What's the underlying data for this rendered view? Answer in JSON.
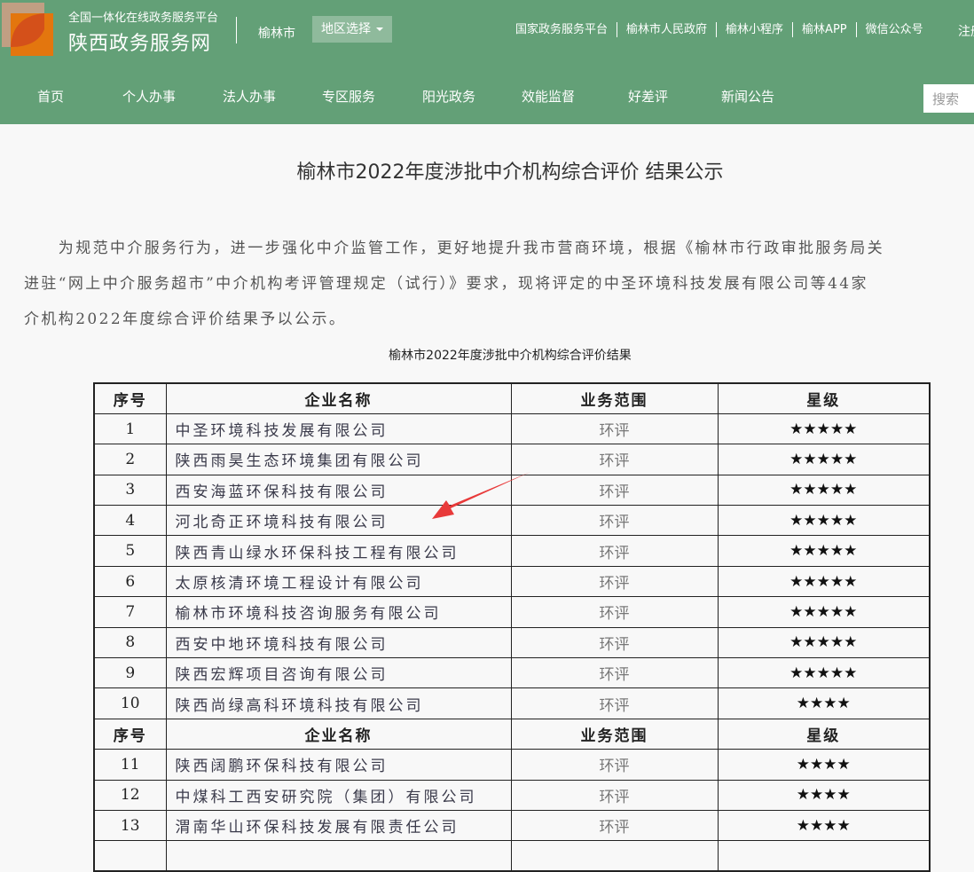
{
  "header": {
    "platform": "全国一体化在线政务服务平台",
    "site_name": "陕西政务服务网",
    "city": "榆林市",
    "region_select": "地区选择",
    "top_links": [
      "国家政务服务平台",
      "榆林市人民政府",
      "榆林小程序",
      "榆林APP",
      "微信公众号"
    ],
    "login": "注册",
    "search_placeholder": "搜索",
    "nav": [
      "首页",
      "个人办事",
      "法人办事",
      "专区服务",
      "阳光政务",
      "效能监督",
      "好差评",
      "新闻公告"
    ]
  },
  "article": {
    "title": "榆林市2022年度涉批中介机构综合评价 结果公示",
    "para_lines": [
      "　　为规范中介服务行为，进一步强化中介监管工作，更好地提升我市营商环境，根据《榆林市行政审批服务局关",
      "进驻“网上中介服务超市”中介机构考评管理规定（试行）》要求，现将评定的中圣环境科技发展有限公司等44家",
      "介机构2022年度综合评价结果予以公示。"
    ],
    "table_caption": "榆林市2022年度涉批中介机构综合评价结果"
  },
  "table": {
    "headers": [
      "序号",
      "企业名称",
      "业务范围",
      "星级"
    ],
    "rows": [
      [
        "1",
        "中圣环境科技发展有限公司",
        "环评",
        "★★★★★"
      ],
      [
        "2",
        "陕西雨昊生态环境集团有限公司",
        "环评",
        "★★★★★"
      ],
      [
        "3",
        "西安海蓝环保科技有限公司",
        "环评",
        "★★★★★"
      ],
      [
        "4",
        "河北奇正环境科技有限公司",
        "环评",
        "★★★★★"
      ],
      [
        "5",
        "陕西青山绿水环保科技工程有限公司",
        "环评",
        "★★★★★"
      ],
      [
        "6",
        "太原核清环境工程设计有限公司",
        "环评",
        "★★★★★"
      ],
      [
        "7",
        "榆林市环境科技咨询服务有限公司",
        "环评",
        "★★★★★"
      ],
      [
        "8",
        "西安中地环境科技有限公司",
        "环评",
        "★★★★★"
      ],
      [
        "9",
        "陕西宏辉项目咨询有限公司",
        "环评",
        "★★★★★"
      ],
      [
        "10",
        "陕西尚绿高科环境科技有限公司",
        "环评",
        "★★★★"
      ],
      [
        "header"
      ],
      [
        "11",
        "陕西阔鹏环保科技有限公司",
        "环评",
        "★★★★"
      ],
      [
        "12",
        "中煤科工西安研究院（集团）有限公司",
        "环评",
        "★★★★"
      ],
      [
        "13",
        "渭南华山环保科技发展有限责任公司",
        "环评",
        "★★★★"
      ],
      [
        "",
        "",
        "",
        ""
      ]
    ]
  },
  "colors": {
    "header_bg": "#63a077",
    "arrow": "#e83a3a"
  }
}
